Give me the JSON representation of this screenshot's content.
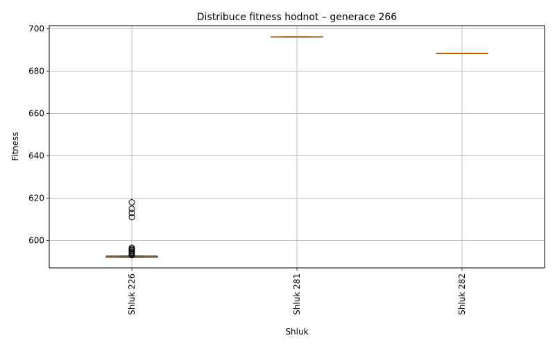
{
  "chart_data": {
    "type": "box",
    "title": "Distribuce fitness hodnot – generace 266",
    "xlabel": "Shluk",
    "ylabel": "Fitness",
    "ylim": [
      587,
      701.5
    ],
    "yticks": [
      600,
      620,
      640,
      660,
      680,
      700
    ],
    "grid": true,
    "categories": [
      "Shluk 226",
      "Shluk 281",
      "Shluk 282"
    ],
    "boxes": [
      {
        "label": "Shluk 226",
        "whislo": 592.0,
        "q1": 592.0,
        "med": 592.3,
        "q3": 592.6,
        "whishi": 592.6,
        "fliers": [
          593.0,
          593.5,
          594.0,
          594.5,
          595.0,
          595.5,
          596.0,
          596.5,
          611,
          613,
          615,
          618
        ]
      },
      {
        "label": "Shluk 281",
        "whislo": 696.3,
        "q1": 696.3,
        "med": 696.3,
        "q3": 696.3,
        "whishi": 696.3,
        "fliers": []
      },
      {
        "label": "Shluk 282",
        "whislo": 688.5,
        "q1": 688.5,
        "med": 688.5,
        "q3": 688.5,
        "whishi": 688.5,
        "fliers": []
      }
    ],
    "colors": {
      "box": "#000000",
      "median": "#ff7f0e",
      "grid": "#b0b0b0",
      "flier": "#000000"
    }
  }
}
